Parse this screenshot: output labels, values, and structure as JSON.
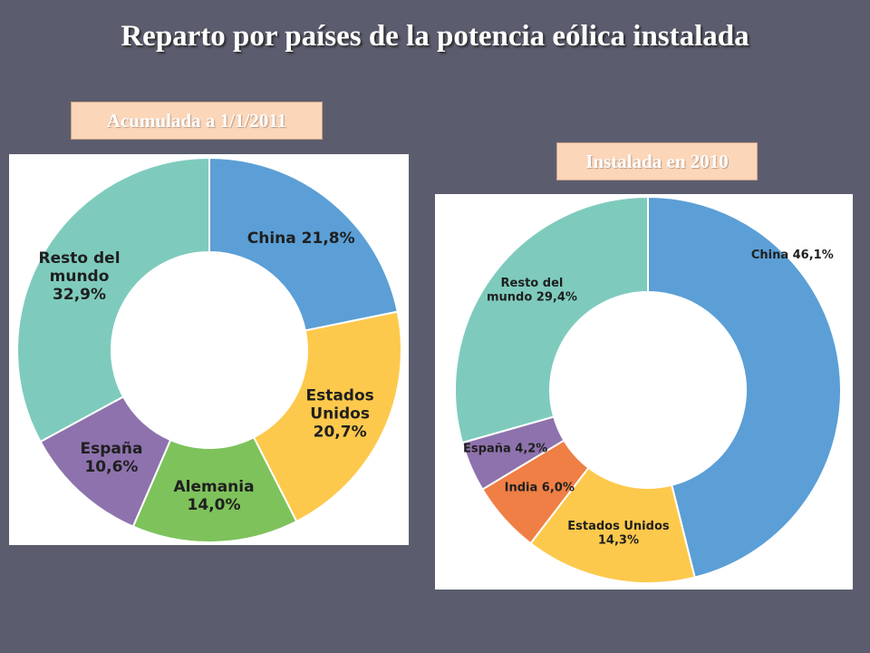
{
  "title": "Reparto por países de la potencia eólica instalada",
  "chart_data": [
    {
      "type": "pie",
      "subtitle": "Acumulada a 1/1/2011",
      "slices": [
        {
          "name": "China",
          "value": 21.8,
          "label_lines": [
            "China 21,8%"
          ],
          "color": "#5b9fd6"
        },
        {
          "name": "Estados Unidos",
          "value": 20.7,
          "label_lines": [
            "Estados",
            "Unidos",
            "20,7%"
          ],
          "color": "#fdc94c"
        },
        {
          "name": "Alemania",
          "value": 14.0,
          "label_lines": [
            "Alemania",
            "14,0%"
          ],
          "color": "#7ec25c"
        },
        {
          "name": "España",
          "value": 10.6,
          "label_lines": [
            "España",
            "10,6%"
          ],
          "color": "#8e72ad"
        },
        {
          "name": "Resto del mundo",
          "value": 32.9,
          "label_lines": [
            "Resto del",
            "mundo",
            "32,9%"
          ],
          "color": "#7ecbbd"
        }
      ]
    },
    {
      "type": "pie",
      "subtitle": "Instalada en 2010",
      "slices": [
        {
          "name": "China",
          "value": 46.1,
          "label_lines": [
            "China 46,1%"
          ],
          "color": "#5b9fd6"
        },
        {
          "name": "Estados Unidos",
          "value": 14.3,
          "label_lines": [
            "Estados Unidos",
            "14,3%"
          ],
          "color": "#fdc94c"
        },
        {
          "name": "India",
          "value": 6.0,
          "label_lines": [
            "India 6,0%"
          ],
          "color": "#ef7f45"
        },
        {
          "name": "España",
          "value": 4.2,
          "label_lines": [
            "España 4,2%"
          ],
          "color": "#8e72ad"
        },
        {
          "name": "Resto del mundo",
          "value": 29.4,
          "label_lines": [
            "Resto del",
            "mundo 29,4%"
          ],
          "color": "#7ecbbd"
        }
      ]
    }
  ]
}
